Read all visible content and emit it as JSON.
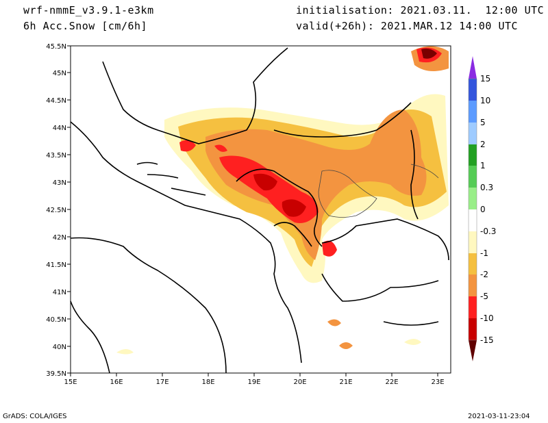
{
  "header": {
    "model": "wrf-nmmE_v3.9.1-e3km",
    "field": "6h Acc.Snow [cm/6h]",
    "init": "initialisation: 2021.03.11.  12:00 UTC",
    "valid": "valid(+26h): 2021.MAR.12 14:00 UTC"
  },
  "footer": {
    "credit": "GrADS: COLA/IGES",
    "timestamp": "2021-03-11-23:04"
  },
  "map": {
    "lon_ticks": [
      "15E",
      "16E",
      "17E",
      "18E",
      "19E",
      "20E",
      "21E",
      "22E",
      "23E"
    ],
    "lat_ticks": [
      "39.5N",
      "40N",
      "40.5N",
      "41N",
      "41.5N",
      "42N",
      "42.5N",
      "43N",
      "43.5N",
      "44N",
      "44.5N",
      "45N",
      "45.5N"
    ],
    "lon_range": [
      15,
      23.3
    ],
    "lat_range": [
      39.5,
      45.5
    ]
  },
  "colorbar": {
    "levels": [
      "15",
      "10",
      "5",
      "2",
      "1",
      "0.3",
      "0",
      "-0.3",
      "-1",
      "-2",
      "-5",
      "-10",
      "-15"
    ],
    "colors": [
      "#3355dd",
      "#5c9bff",
      "#9ecbff",
      "#22a022",
      "#55cc55",
      "#99ee88",
      "#ffffff",
      "#fff8c0",
      "#f5c040",
      "#f39440",
      "#ff2020",
      "#c80000",
      "#7a0000"
    ],
    "top_color": "#8a2be2",
    "bottom_color": "#600000"
  }
}
